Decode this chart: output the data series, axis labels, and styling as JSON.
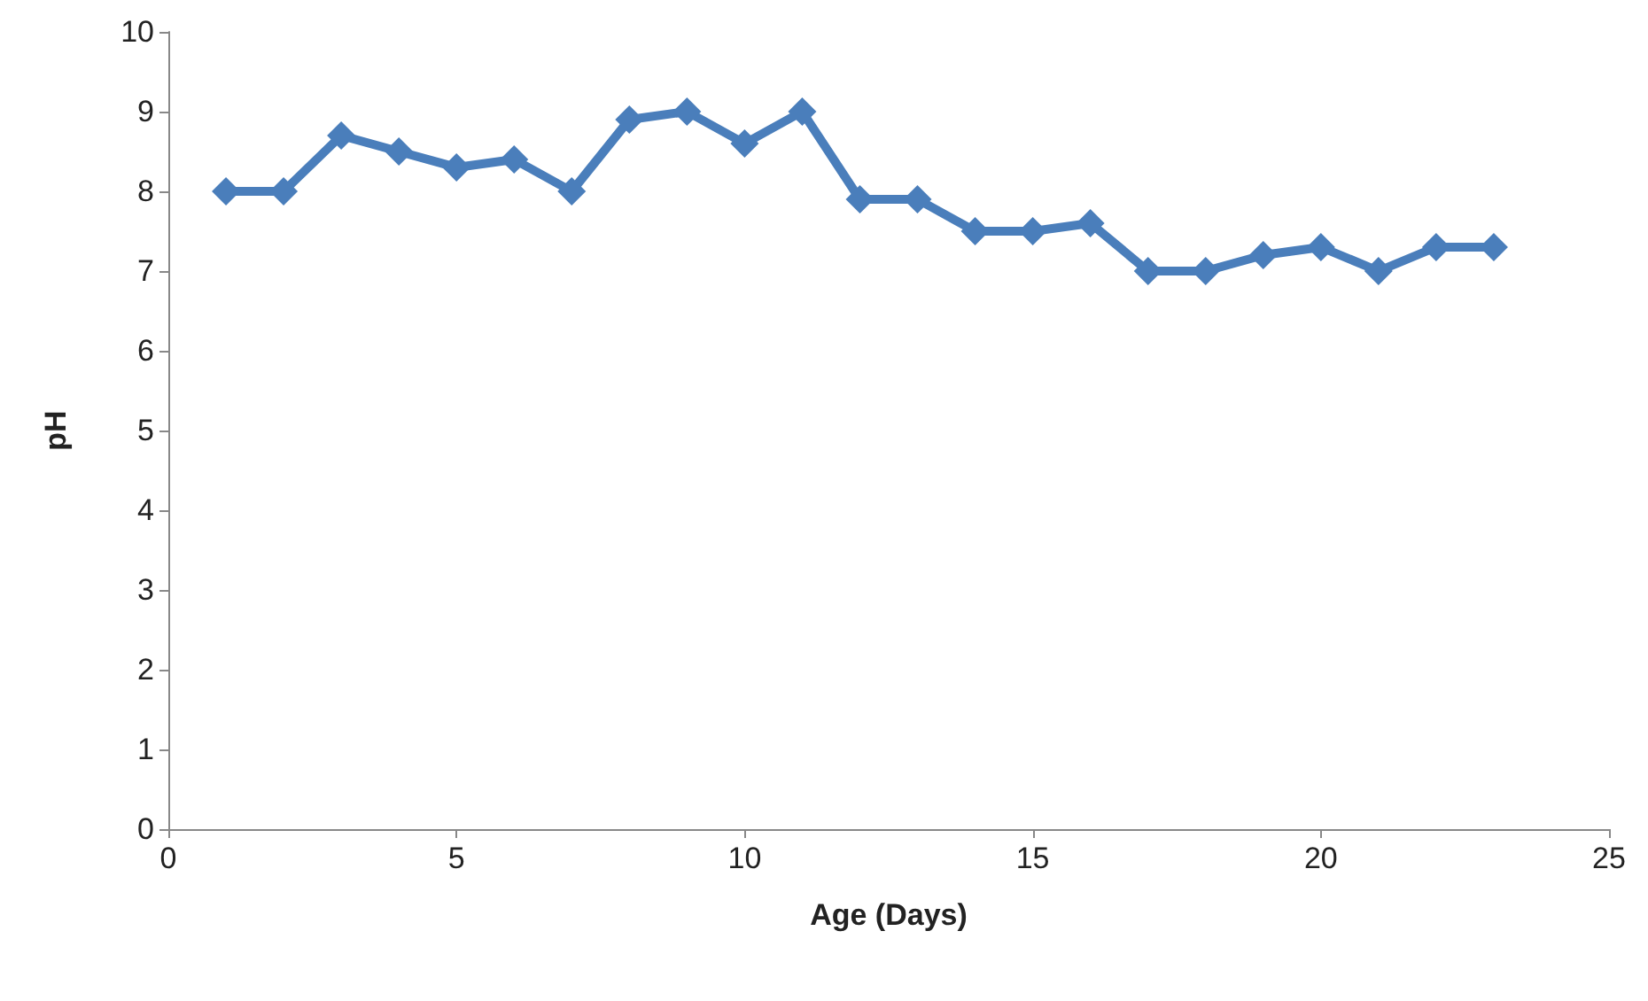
{
  "chart_data": {
    "type": "line",
    "xlabel": "Age (Days)",
    "ylabel": "pH",
    "x": [
      1,
      2,
      3,
      4,
      5,
      6,
      7,
      8,
      9,
      10,
      11,
      12,
      13,
      14,
      15,
      16,
      17,
      18,
      19,
      20,
      21,
      22,
      23
    ],
    "series": [
      {
        "color": "#4a7ebb",
        "values": [
          8,
          8,
          8.7,
          8.5,
          8.3,
          8.4,
          8,
          8.9,
          9,
          8.6,
          9,
          7.9,
          7.9,
          7.5,
          7.5,
          7.6,
          7,
          7,
          7.2,
          7.3,
          7,
          7.3,
          7.3
        ]
      }
    ],
    "xlim": [
      0,
      25
    ],
    "xticks": [
      0,
      5,
      10,
      15,
      20,
      25
    ],
    "ylim": [
      0,
      10
    ],
    "yticks": [
      0,
      1,
      2,
      3,
      4,
      5,
      6,
      7,
      8,
      9,
      10
    ],
    "grid": false,
    "marker": "diamond",
    "line_style": "solid"
  }
}
